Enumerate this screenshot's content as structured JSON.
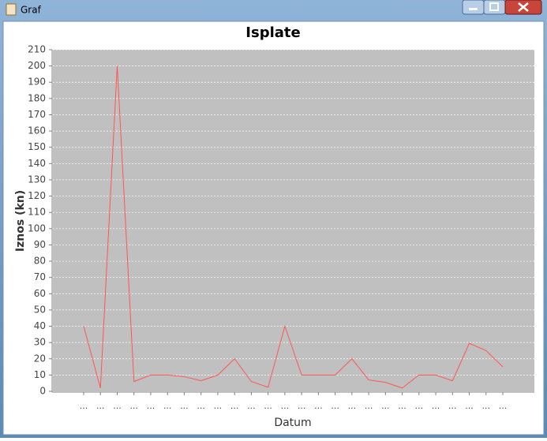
{
  "window": {
    "title": "Graf"
  },
  "chart_data": {
    "type": "line",
    "title": "Isplate",
    "x_label": "Datum",
    "y_label": "Iznos (kn)",
    "categories": [
      "...",
      "...",
      "...",
      "...",
      "...",
      "...",
      "...",
      "...",
      "...",
      "...",
      "...",
      "...",
      "...",
      "...",
      "...",
      "...",
      "...",
      "...",
      "...",
      "...",
      "...",
      "...",
      "...",
      "...",
      "...",
      "..."
    ],
    "series": [
      {
        "name": "Isplate",
        "color": "#ff5555",
        "values": [
          40,
          2,
          200,
          6,
          10,
          10,
          9,
          6.5,
          10,
          20,
          6,
          2.5,
          40,
          10,
          10,
          10,
          20,
          7,
          5.5,
          2,
          10,
          10,
          6.5,
          29.5,
          25,
          15
        ]
      }
    ],
    "ylim": [
      0,
      210
    ],
    "yticks": [
      0,
      10,
      20,
      30,
      40,
      50,
      60,
      70,
      80,
      90,
      100,
      110,
      120,
      130,
      140,
      150,
      160,
      170,
      180,
      190,
      200,
      210
    ],
    "grid": true
  }
}
